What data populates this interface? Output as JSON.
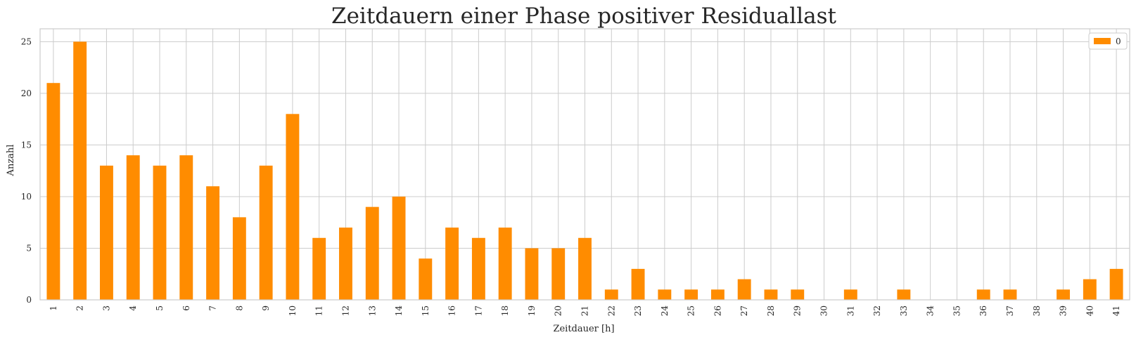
{
  "chart_data": {
    "type": "bar",
    "title": "Zeitdauern einer Phase positiver Residuallast",
    "xlabel": "Zeitdauer [h]",
    "ylabel": "Anzahl",
    "categories": [
      "1",
      "2",
      "3",
      "4",
      "5",
      "6",
      "7",
      "8",
      "9",
      "10",
      "11",
      "12",
      "13",
      "14",
      "15",
      "16",
      "17",
      "18",
      "19",
      "20",
      "21",
      "22",
      "23",
      "24",
      "25",
      "26",
      "27",
      "28",
      "29",
      "30",
      "31",
      "32",
      "33",
      "34",
      "35",
      "36",
      "37",
      "38",
      "39",
      "40",
      "41"
    ],
    "series": [
      {
        "name": "0",
        "color": "#ff8c00",
        "values": [
          21,
          25,
          13,
          14,
          13,
          14,
          11,
          8,
          13,
          18,
          6,
          7,
          9,
          10,
          4,
          7,
          6,
          7,
          5,
          5,
          6,
          1,
          3,
          1,
          1,
          1,
          2,
          1,
          1,
          0,
          1,
          0,
          1,
          0,
          0,
          1,
          1,
          0,
          1,
          2,
          3
        ]
      }
    ],
    "ylim": [
      0,
      26.25
    ],
    "yticks": [
      0,
      5,
      10,
      15,
      20,
      25
    ],
    "grid": true,
    "legend": "top-right"
  }
}
